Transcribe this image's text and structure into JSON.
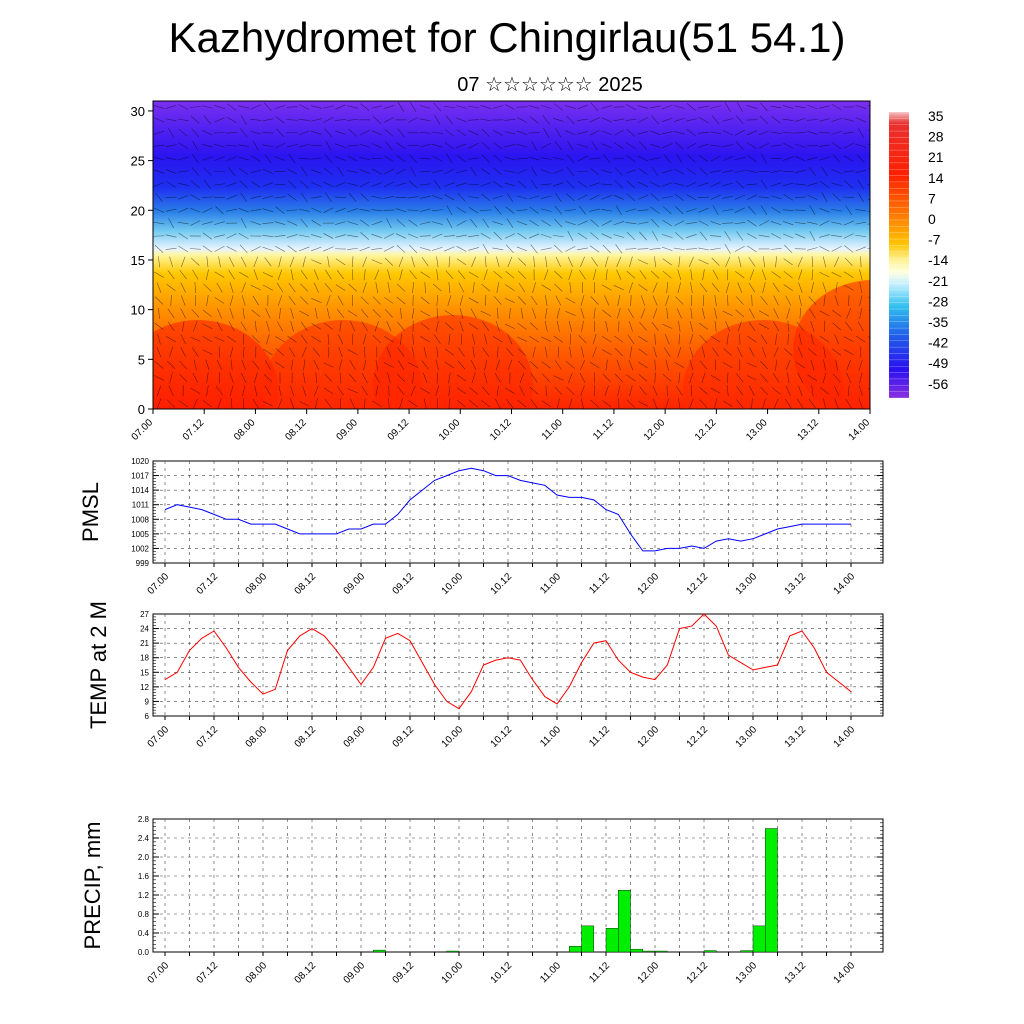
{
  "title": "Kazhydromet for Chingirlau(51 54.1)",
  "subtitle": "07 ☆☆☆☆☆☆ 2025",
  "x_tick_labels": [
    "07.00",
    "07.12",
    "08.00",
    "08.12",
    "09.00",
    "09.12",
    "10.00",
    "10.12",
    "11.00",
    "11.12",
    "12.00",
    "12.12",
    "13.00",
    "13.12",
    "14.00"
  ],
  "chart_data": [
    {
      "type": "heatmap",
      "title": "",
      "ylabel": "",
      "ylim": [
        0,
        31
      ],
      "yticks": [
        0,
        5,
        10,
        15,
        20,
        25,
        30
      ],
      "colorbar_ticks": [
        "35",
        "28",
        "21",
        "14",
        "7",
        "0",
        "-7",
        "-14",
        "-21",
        "-28",
        "-35",
        "-42",
        "-49",
        "-56"
      ],
      "colorbar_range": [
        -60,
        38
      ],
      "height_levels": [
        0,
        5,
        10,
        15,
        20,
        25,
        30
      ],
      "profile_values": [
        28,
        24,
        10,
        -18,
        -40,
        -58,
        -56
      ]
    },
    {
      "type": "line",
      "ylabel": "PMSL",
      "ylim": [
        999,
        1020
      ],
      "yticks": [
        "999",
        "1002",
        "1005",
        "1008",
        "1011",
        "1014",
        "1017",
        "1020"
      ],
      "color": "#0000ff",
      "x_hours": [
        0,
        3,
        6,
        9,
        12,
        15,
        18,
        21,
        24,
        27,
        30,
        33,
        36,
        39,
        42,
        45,
        48,
        51,
        54,
        57,
        60,
        63,
        66,
        69,
        72,
        75,
        78,
        81,
        84,
        87,
        90,
        93,
        96,
        99,
        102,
        105,
        108,
        111,
        114,
        117,
        120,
        123,
        126,
        129,
        132,
        135,
        138,
        141,
        144,
        147,
        150,
        153,
        156,
        159,
        162,
        165,
        168
      ],
      "values": [
        1010,
        1011,
        1010.5,
        1010,
        1009,
        1008,
        1008,
        1007,
        1007,
        1007,
        1006,
        1005,
        1005,
        1005,
        1005,
        1006,
        1006,
        1007,
        1007,
        1009,
        1012,
        1014,
        1016,
        1017,
        1018,
        1018.5,
        1018,
        1017,
        1017,
        1016,
        1015.5,
        1015,
        1013,
        1012.5,
        1012.5,
        1012,
        1010,
        1009,
        1005,
        1001.5,
        1001.5,
        1002,
        1002,
        1002.5,
        1002,
        1003.5,
        1004,
        1003.5,
        1004,
        1005,
        1006,
        1006.5,
        1007,
        1007,
        1007,
        1007,
        1007
      ]
    },
    {
      "type": "line",
      "ylabel": "TEMP at 2 M",
      "ylim": [
        6,
        27
      ],
      "yticks": [
        "6",
        "9",
        "12",
        "15",
        "18",
        "21",
        "24",
        "27"
      ],
      "color": "#ff0000",
      "x_hours": [
        0,
        3,
        6,
        9,
        12,
        15,
        18,
        21,
        24,
        27,
        30,
        33,
        36,
        39,
        42,
        45,
        48,
        51,
        54,
        57,
        60,
        63,
        66,
        69,
        72,
        75,
        78,
        81,
        84,
        87,
        90,
        93,
        96,
        99,
        102,
        105,
        108,
        111,
        114,
        117,
        120,
        123,
        126,
        129,
        132,
        135,
        138,
        141,
        144,
        147,
        150,
        153,
        156,
        159,
        162,
        165,
        168
      ],
      "values": [
        13.5,
        15,
        19.5,
        22,
        23.5,
        20,
        16,
        13,
        10.5,
        11.5,
        19.5,
        22.5,
        24,
        22.5,
        19.5,
        16,
        12.5,
        16,
        22,
        23,
        21.5,
        17,
        12.5,
        9,
        7.5,
        11,
        16.5,
        17.5,
        18,
        17.5,
        13.5,
        10,
        8.5,
        12,
        17,
        21,
        21.5,
        17.5,
        15,
        14,
        13.5,
        16.5,
        24,
        24.5,
        27,
        24.5,
        18.5,
        17,
        15.5,
        16,
        16.5,
        22.5,
        23.5,
        20,
        15,
        13,
        11
      ]
    },
    {
      "type": "bar",
      "ylabel": "PRECIP, mm",
      "ylim": [
        0,
        2.8
      ],
      "yticks": [
        "0.0",
        "0.4",
        "0.8",
        "1.2",
        "1.6",
        "2.0",
        "2.4",
        "2.8"
      ],
      "color": "#00ee00",
      "x_hours": [
        51,
        69,
        72,
        75,
        78,
        81,
        84,
        87,
        99,
        102,
        108,
        111,
        114,
        117,
        120,
        132,
        141,
        144,
        147
      ],
      "values": [
        0.04,
        0.02,
        0.0,
        0.0,
        0.0,
        0.0,
        0.0,
        0.0,
        0.12,
        0.55,
        0.5,
        1.3,
        0.06,
        0.02,
        0.02,
        0.03,
        0.03,
        0.55,
        2.6
      ]
    }
  ]
}
